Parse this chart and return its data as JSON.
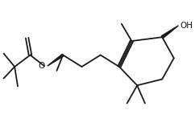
{
  "bg_color": "#ffffff",
  "line_color": "#1a1a1a",
  "line_width": 1.3,
  "font_size": 7.5,
  "figsize": [
    2.42,
    1.68
  ],
  "dpi": 100
}
